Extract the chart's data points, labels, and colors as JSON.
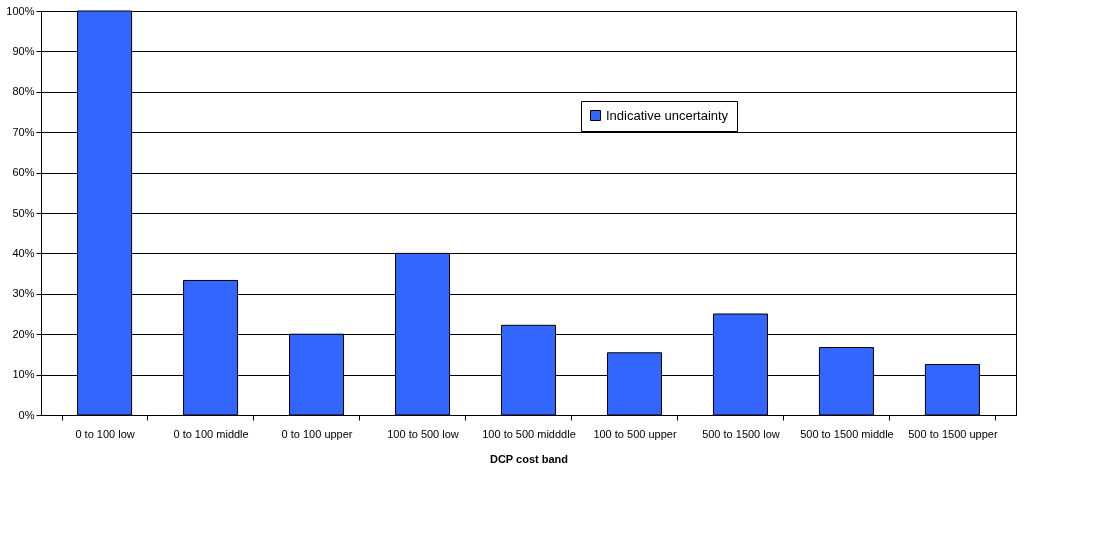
{
  "chart_data": {
    "type": "bar",
    "xlabel": "DCP cost band",
    "categories": [
      "0 to 100 low",
      "0 to 100 middle",
      "0 to 100 upper",
      "100 to 500 low",
      "100 to 500 midddle",
      "100 to 500 upper",
      "500 to 1500 low",
      "500 to 1500 middle",
      "500 to 1500 upper"
    ],
    "series": [
      {
        "name": "Indicative uncertainty",
        "color": "#3366ff",
        "values": [
          100,
          33.3,
          20,
          40,
          22.2,
          15.4,
          25,
          16.7,
          12.5
        ]
      }
    ],
    "ylim": [
      0,
      100
    ],
    "yticks": [
      {
        "value": 0,
        "label": "0%"
      },
      {
        "value": 10,
        "label": "10%"
      },
      {
        "value": 20,
        "label": "20%"
      },
      {
        "value": 30,
        "label": "30%"
      },
      {
        "value": 40,
        "label": "40%"
      },
      {
        "value": 50,
        "label": "50%"
      },
      {
        "value": 60,
        "label": "60%"
      },
      {
        "value": 70,
        "label": "70%"
      },
      {
        "value": 80,
        "label": "80%"
      },
      {
        "value": 90,
        "label": "90%"
      },
      {
        "value": 100,
        "label": "100%"
      }
    ],
    "grid": "y",
    "legend": "top"
  }
}
